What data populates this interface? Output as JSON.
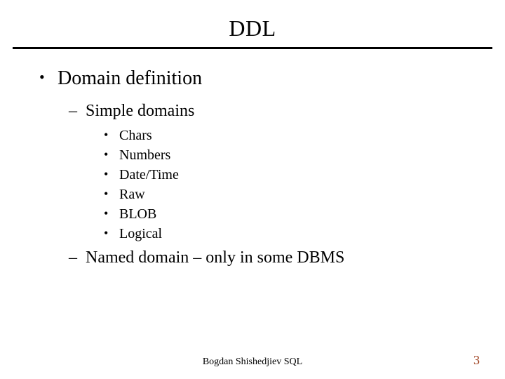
{
  "title": "DDL",
  "level1": {
    "text": "Domain definition"
  },
  "level2a": {
    "text": "Simple domains"
  },
  "level3": [
    {
      "text": "Chars"
    },
    {
      "text": "Numbers"
    },
    {
      "text": "Date/Time"
    },
    {
      "text": "Raw"
    },
    {
      "text": "BLOB"
    },
    {
      "text": "Logical"
    }
  ],
  "level2b": {
    "text": "Named domain – only in some DBMS"
  },
  "footer": "Bogdan Shishedjiev SQL",
  "page_number": "3",
  "colors": {
    "rule": "#000000",
    "text": "#000000",
    "pagenum": "#9b3a17",
    "background": "#ffffff"
  }
}
